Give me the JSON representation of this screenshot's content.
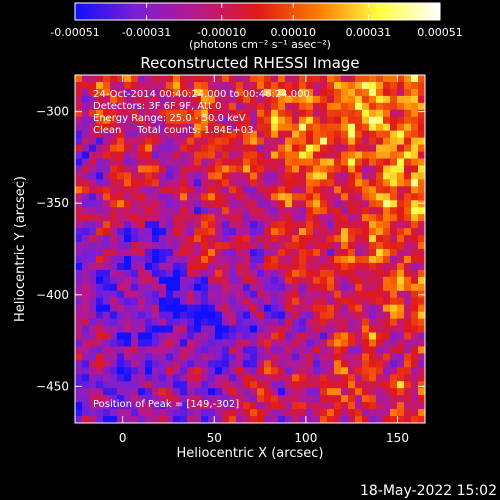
{
  "title": "Reconstructed RHESSI Image",
  "colorbar": {
    "ticks": [
      "-0.00051",
      "-0.00031",
      "-0.00010",
      "0.00010",
      "0.00031",
      "0.00051"
    ],
    "tick_values": [
      -0.00051,
      -0.00031,
      -0.0001,
      0.0001,
      0.00031,
      0.00051
    ],
    "range": [
      -0.00051,
      0.00051
    ],
    "unit_label": "(photons cm⁻² s⁻¹ asec⁻²)",
    "colormap": [
      "#1010ff",
      "#7a1fd6",
      "#b8188a",
      "#e01818",
      "#ff7a00",
      "#ffff40",
      "#ffffff"
    ]
  },
  "overlay": {
    "line1": "24-Oct-2014 00:40:24.000 to 00:46:24.000",
    "line2": "Detectors: 3F 6F 9F, Att 0",
    "line3": "Energy Range: 25.0 - 50.0 keV",
    "line4": "Clean     Total counts: 1.84E+03",
    "peak": "Position of Peak = [149,-302]"
  },
  "footer": "18-May-2022 15:02",
  "chart_data": {
    "type": "heatmap",
    "title": "Reconstructed RHESSI Image",
    "xlabel": "Heliocentric X (arcsec)",
    "ylabel": "Heliocentric Y (arcsec)",
    "xlim": [
      -26,
      165
    ],
    "ylim": [
      -470,
      -280
    ],
    "x_ticks": [
      0,
      50,
      100,
      150
    ],
    "x_tick_labels": [
      "0",
      "50",
      "100",
      "150"
    ],
    "y_ticks": [
      -300,
      -350,
      -400,
      -450
    ],
    "y_tick_labels": [
      "−300",
      "−350",
      "−400",
      "−450"
    ],
    "peak_position": [
      149,
      -302
    ],
    "value_range": [
      -0.00051,
      0.00051
    ],
    "grid": false
  }
}
